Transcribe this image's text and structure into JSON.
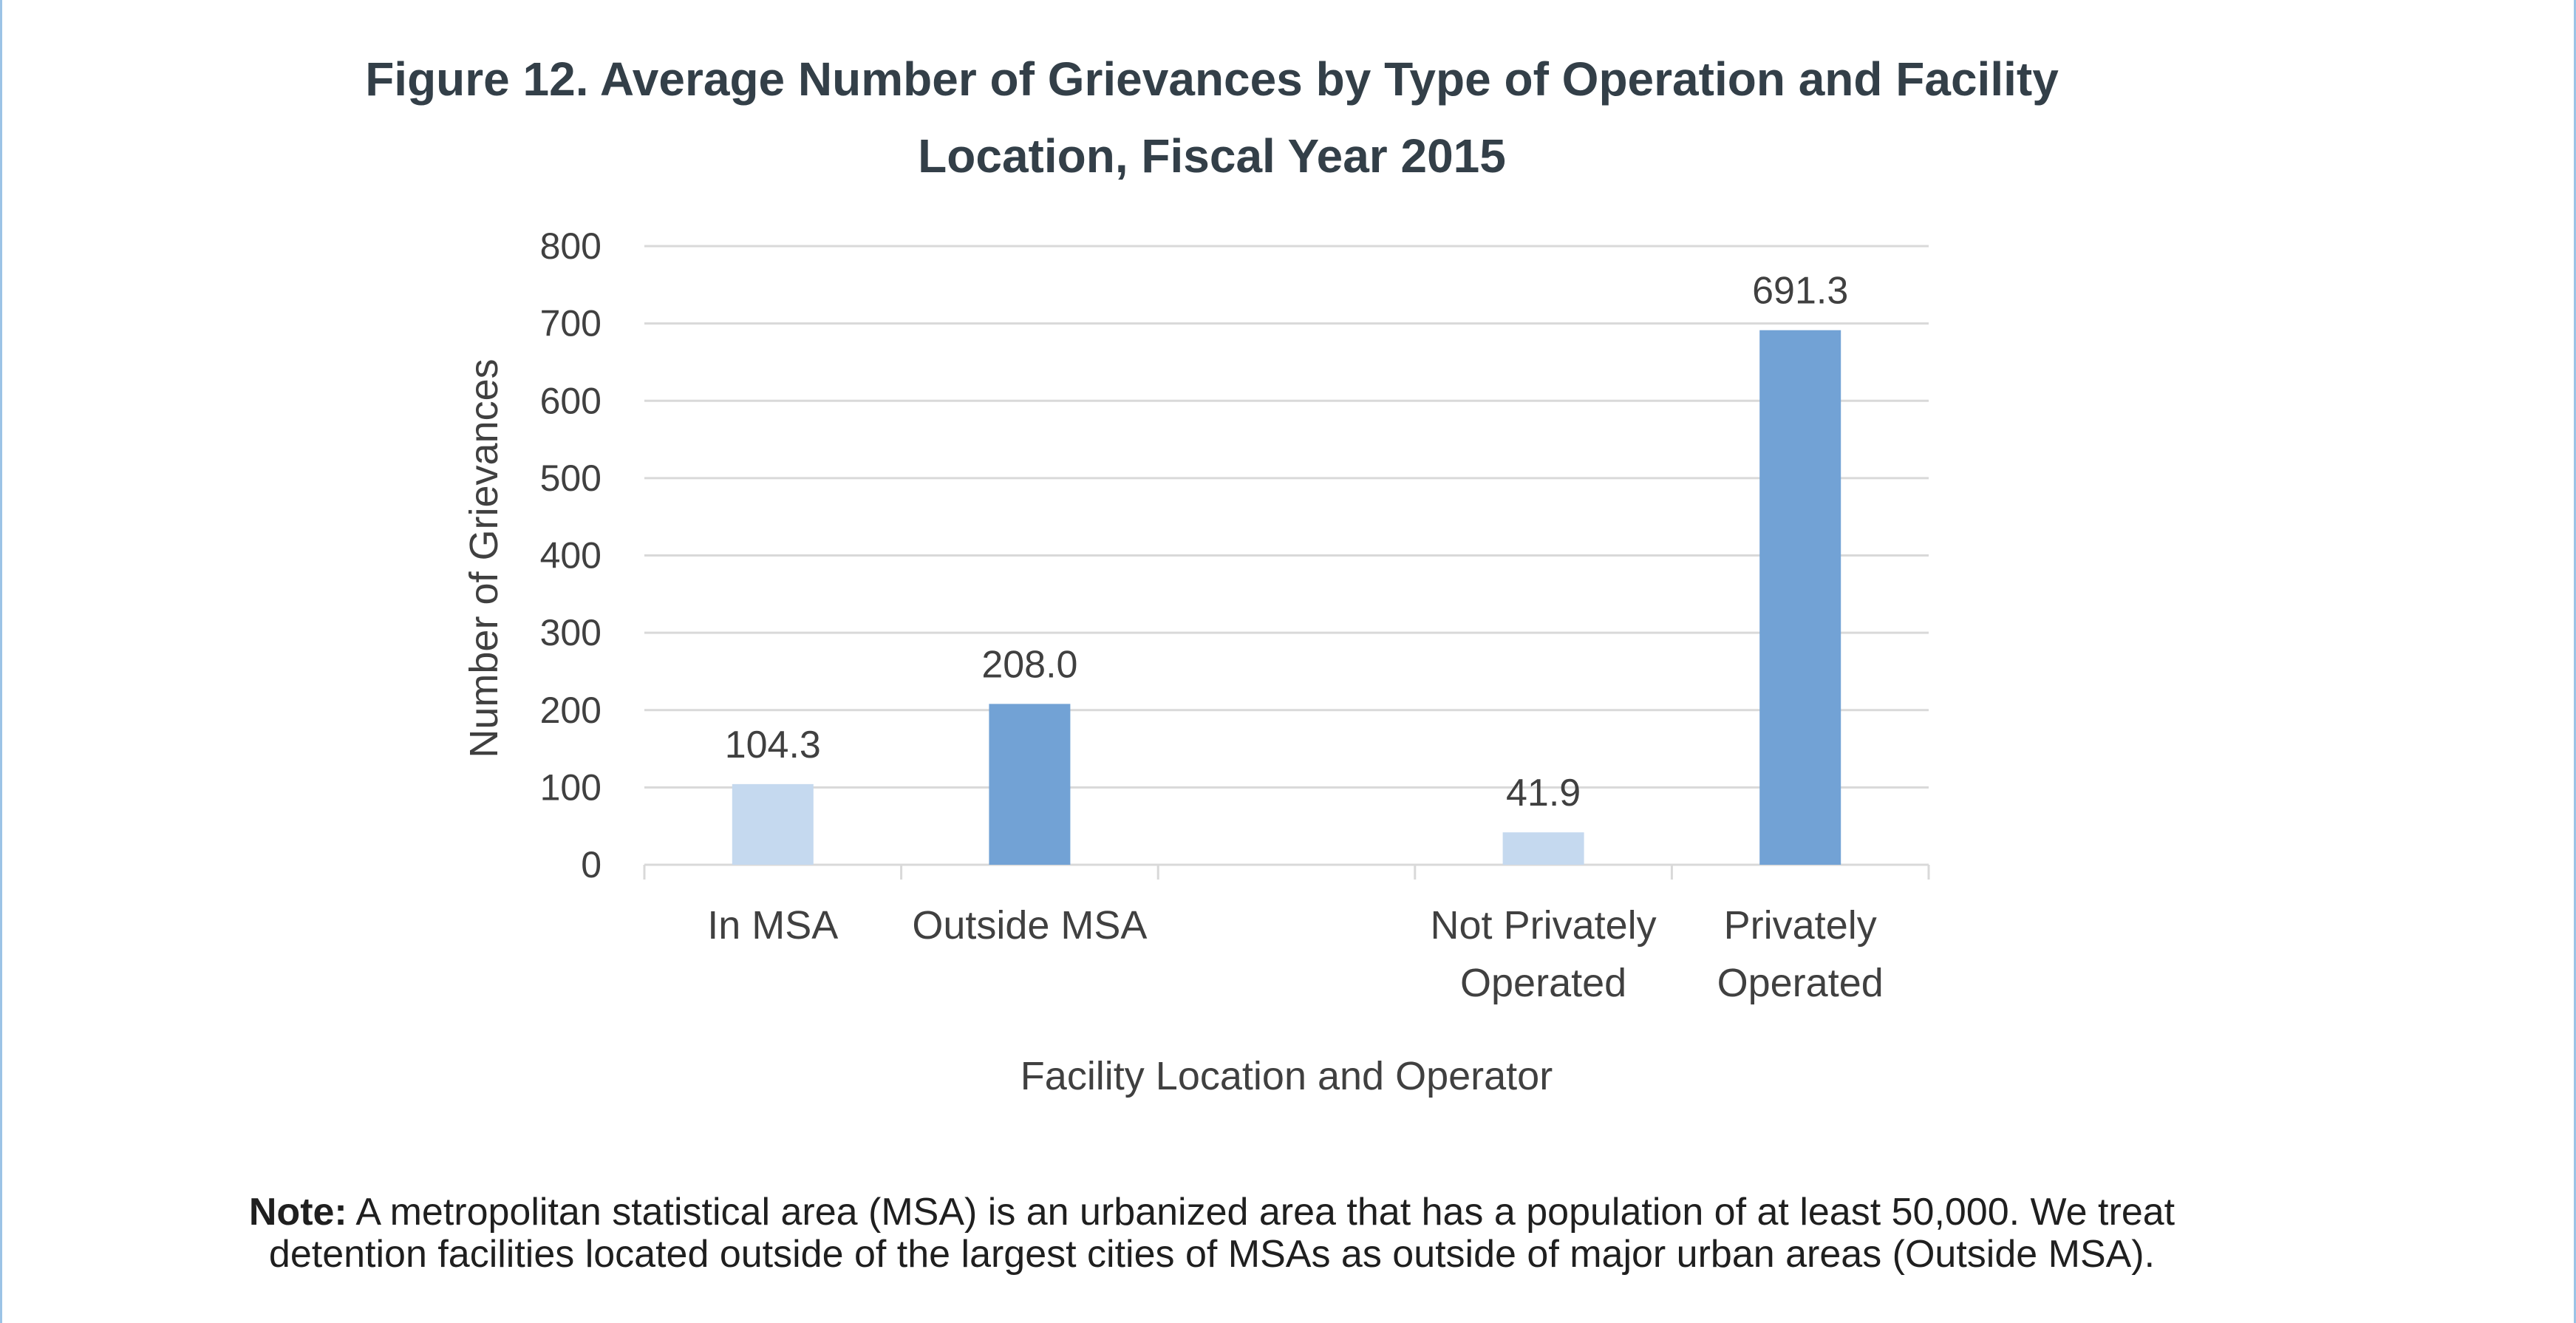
{
  "chart_data": {
    "type": "bar",
    "title": "Figure 12. Average Number of Grievances by Type of Operation and Facility Location, Fiscal Year 2015",
    "title_lines": [
      "Figure 12. Average Number of Grievances by Type of Operation and Facility",
      "Location, Fiscal Year 2015"
    ],
    "xlabel": "Facility Location and Operator",
    "ylabel": "Number of Grievances",
    "ylim": [
      0,
      800
    ],
    "yticks": [
      0,
      100,
      200,
      300,
      400,
      500,
      600,
      700,
      800
    ],
    "grid": true,
    "categories": [
      {
        "label": [
          "In MSA"
        ],
        "value": 104.3,
        "value_label": "104.3",
        "color": "#c5d9ef"
      },
      {
        "label": [
          "Outside MSA"
        ],
        "value": 208.0,
        "value_label": "208.0",
        "color": "#72a2d5"
      },
      {
        "label": [],
        "value": null,
        "value_label": "",
        "color": ""
      },
      {
        "label": [
          "Not Privately",
          "Operated"
        ],
        "value": 41.9,
        "value_label": "41.9",
        "color": "#c5d9ef"
      },
      {
        "label": [
          "Privately",
          "Operated"
        ],
        "value": 691.3,
        "value_label": "691.3",
        "color": "#72a2d5"
      }
    ],
    "colors": {
      "light_bar": "#c5d9ef",
      "dark_bar": "#72a2d5",
      "grid": "#d9d9d9",
      "axis": "#d9d9d9",
      "text": "#404040"
    }
  },
  "note": {
    "bold": "Note:",
    "text": " A metropolitan statistical area (MSA) is an urbanized area that has a population of at least 50,000. We treat detention facilities located outside of the largest cities of MSAs as outside of major urban areas (Outside MSA)."
  }
}
